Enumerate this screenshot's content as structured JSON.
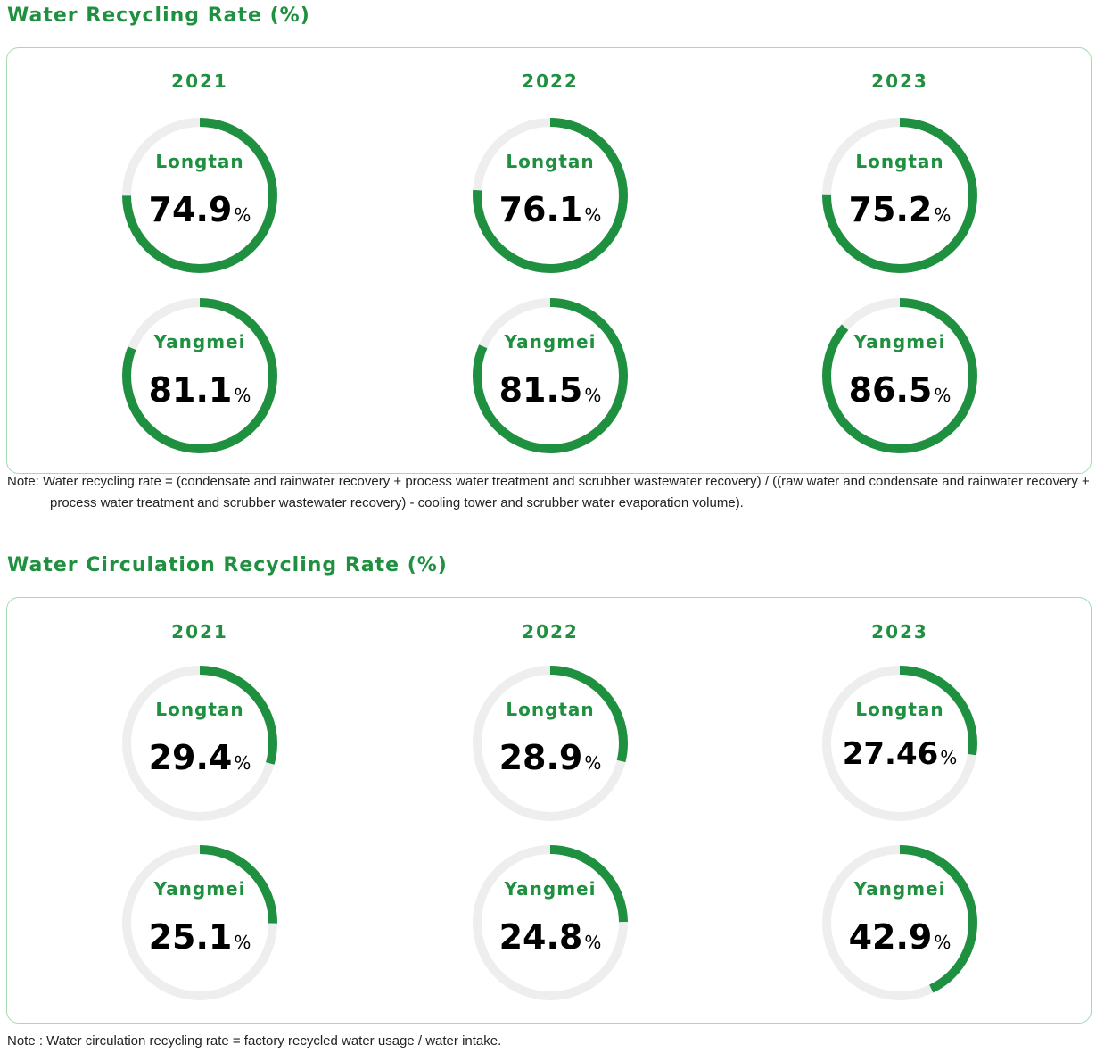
{
  "sections": [
    {
      "title": "Water Recycling Rate (%)",
      "note": "Note: Water recycling rate = (condensate and rainwater recovery + process water treatment and scrubber wastewater recovery) / ((raw water and condensate and rainwater recovery + process water treatment and scrubber wastewater recovery) - cooling tower and scrubber water evaporation volume).",
      "years": [
        "2021",
        "2022",
        "2023"
      ],
      "percent_symbol": "%"
    },
    {
      "title": "Water Circulation Recycling Rate (%)",
      "note": "Note : Water circulation recycling rate = factory recycled water usage / water intake.",
      "years": [
        "2021",
        "2022",
        "2023"
      ],
      "percent_symbol": "%"
    }
  ],
  "colors": {
    "accent": "#1f9040",
    "track": "#eeeeee",
    "border": "#a8d8ad",
    "value_text": "#000000"
  },
  "chart_data": [
    {
      "type": "donut",
      "title": "Water Recycling Rate (%)",
      "categories": [
        "2021",
        "2022",
        "2023"
      ],
      "series": [
        {
          "name": "Longtan",
          "values": [
            74.9,
            76.1,
            75.2
          ],
          "labels": [
            "74.9",
            "76.1",
            "75.2"
          ]
        },
        {
          "name": "Yangmei",
          "values": [
            81.1,
            81.5,
            86.5
          ],
          "labels": [
            "81.1",
            "81.5",
            "86.5"
          ]
        }
      ],
      "unit": "%",
      "max": 100
    },
    {
      "type": "donut",
      "title": "Water Circulation Recycling Rate (%)",
      "categories": [
        "2021",
        "2022",
        "2023"
      ],
      "series": [
        {
          "name": "Longtan",
          "values": [
            29.4,
            28.9,
            27.46
          ],
          "labels": [
            "29.4",
            "28.9",
            "27.46"
          ]
        },
        {
          "name": "Yangmei",
          "values": [
            25.1,
            24.8,
            42.9
          ],
          "labels": [
            "25.1",
            "24.8",
            "42.9"
          ]
        }
      ],
      "unit": "%",
      "max": 100
    }
  ]
}
